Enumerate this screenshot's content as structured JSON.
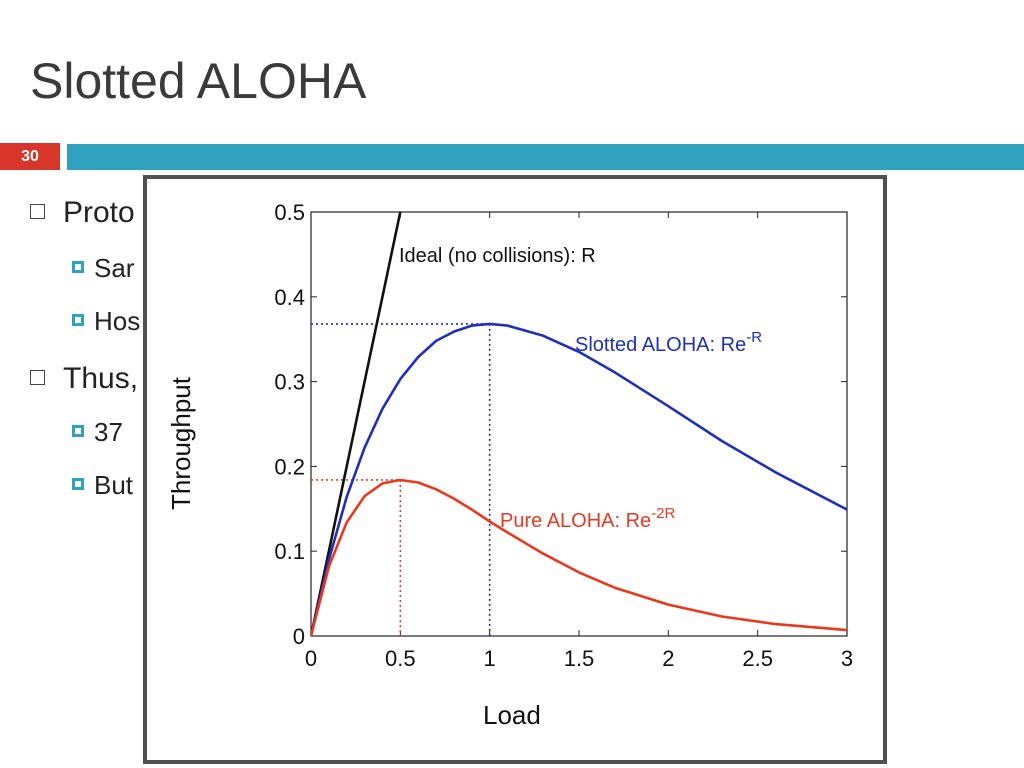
{
  "slide": {
    "title": "Slotted ALOHA",
    "number": "30",
    "bullets": [
      {
        "text": "Proto",
        "level": 1
      },
      {
        "text": "Sar",
        "level": 2
      },
      {
        "text": "Hos",
        "level": 2
      },
      {
        "text": "Thus,",
        "level": 1
      },
      {
        "text": "37",
        "level": 2
      },
      {
        "text": "But",
        "level": 2
      }
    ],
    "colors": {
      "accent_bar": "#2fa0bd",
      "number_box": "#d8362a"
    }
  },
  "chart_data": {
    "type": "line",
    "xlabel": "Load",
    "ylabel": "Throughput",
    "xlim": [
      0,
      3
    ],
    "ylim": [
      0,
      0.5
    ],
    "xticks": [
      "0",
      "0.5",
      "1",
      "1.5",
      "2",
      "2.5",
      "3"
    ],
    "yticks": [
      "0",
      "0.1",
      "0.2",
      "0.3",
      "0.4",
      "0.5"
    ],
    "x": [
      0,
      0.1,
      0.2,
      0.3,
      0.4,
      0.5,
      0.6,
      0.7,
      0.8,
      0.9,
      1.0,
      1.1,
      1.3,
      1.5,
      1.7,
      2.0,
      2.3,
      2.6,
      3.0
    ],
    "series": [
      {
        "label_prefix": "Ideal (no collisions): R",
        "label_sup": "",
        "color": "#111111",
        "x": [
          0,
          0.5
        ],
        "y": [
          0,
          0.5
        ]
      },
      {
        "label_prefix": "Slotted ALOHA: Re",
        "label_sup": "-R",
        "color": "#1f2fb8",
        "y": [
          0,
          0.09,
          0.164,
          0.222,
          0.268,
          0.303,
          0.329,
          0.348,
          0.359,
          0.366,
          0.368,
          0.366,
          0.354,
          0.335,
          0.311,
          0.271,
          0.23,
          0.193,
          0.149
        ]
      },
      {
        "label_prefix": "Pure ALOHA: Re",
        "label_sup": "-2R",
        "color": "#e8391f",
        "y": [
          0,
          0.082,
          0.134,
          0.165,
          0.18,
          0.184,
          0.181,
          0.173,
          0.162,
          0.149,
          0.135,
          0.122,
          0.097,
          0.075,
          0.057,
          0.037,
          0.023,
          0.014,
          0.007
        ]
      }
    ],
    "reference_lines": [
      {
        "x": 1,
        "y": 0.368,
        "color": "#1f2fb8",
        "style": "dotted"
      },
      {
        "x": 0.5,
        "y": 0.184,
        "color": "#e8391f",
        "style": "dotted"
      }
    ]
  }
}
